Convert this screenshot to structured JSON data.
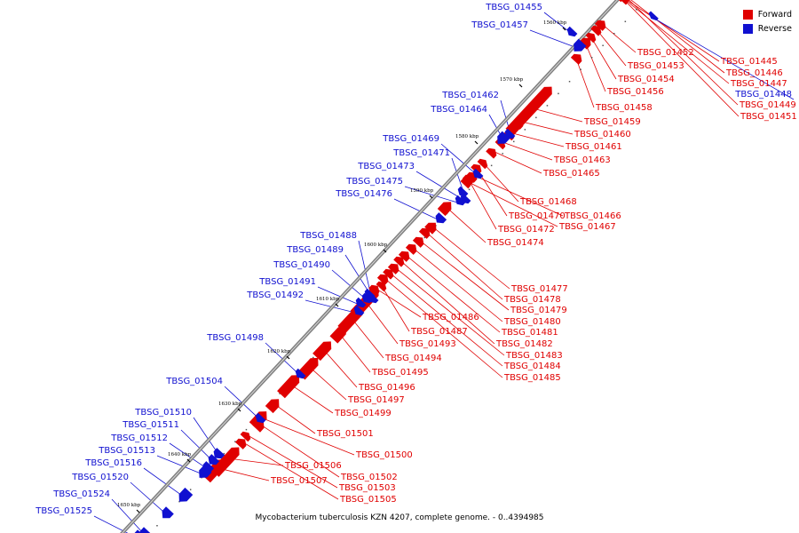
{
  "legend": {
    "items": [
      {
        "label": "Forward",
        "color": "#e00000"
      },
      {
        "label": "Reverse",
        "color": "#1010d0"
      }
    ]
  },
  "caption": "Mycobacterium tuberculosis KZN 4207, complete genome. - 0..4394985",
  "colors": {
    "forward": "#e00000",
    "reverse": "#1010d0",
    "backbone": "#808080"
  },
  "scale": {
    "ticks": [
      "1560 kbp",
      "1570 kbp",
      "1580 kbp",
      "1590 kbp",
      "1600 kbp",
      "1610 kbp",
      "1620 kbp",
      "1630 kbp",
      "1640 kbp",
      "1650 kbp"
    ]
  },
  "genes": {
    "forward": [
      "TBSG_01445",
      "TBSG_01446",
      "TBSG_01447",
      "TBSG_01449",
      "TBSG_01451",
      "TBSG_01452",
      "TBSG_01453",
      "TBSG_01454",
      "TBSG_01456",
      "TBSG_01458",
      "TBSG_01459",
      "TBSG_01460",
      "TBSG_01461",
      "TBSG_01463",
      "TBSG_01465",
      "TBSG_01466",
      "TBSG_01467",
      "TBSG_01468",
      "TBSG_01470",
      "TBSG_01472",
      "TBSG_01474",
      "TBSG_01477",
      "TBSG_01478",
      "TBSG_01479",
      "TBSG_01480",
      "TBSG_01481",
      "TBSG_01482",
      "TBSG_01483",
      "TBSG_01484",
      "TBSG_01485",
      "TBSG_01486",
      "TBSG_01487",
      "TBSG_01493",
      "TBSG_01494",
      "TBSG_01495",
      "TBSG_01496",
      "TBSG_01497",
      "TBSG_01499",
      "TBSG_01500",
      "TBSG_01501",
      "TBSG_01502",
      "TBSG_01503",
      "TBSG_01505",
      "TBSG_01506",
      "TBSG_01507"
    ],
    "reverse": [
      "TBSG_01448",
      "TBSG_01455",
      "TBSG_01457",
      "TBSG_01462",
      "TBSG_01464",
      "TBSG_01469",
      "TBSG_01471",
      "TBSG_01473",
      "TBSG_01475",
      "TBSG_01476",
      "TBSG_01488",
      "TBSG_01489",
      "TBSG_01490",
      "TBSG_01491",
      "TBSG_01492",
      "TBSG_01498",
      "TBSG_01504",
      "TBSG_01510",
      "TBSG_01511",
      "TBSG_01512",
      "TBSG_01513",
      "TBSG_01516",
      "TBSG_01520",
      "TBSG_01524",
      "TBSG_01525"
    ]
  }
}
